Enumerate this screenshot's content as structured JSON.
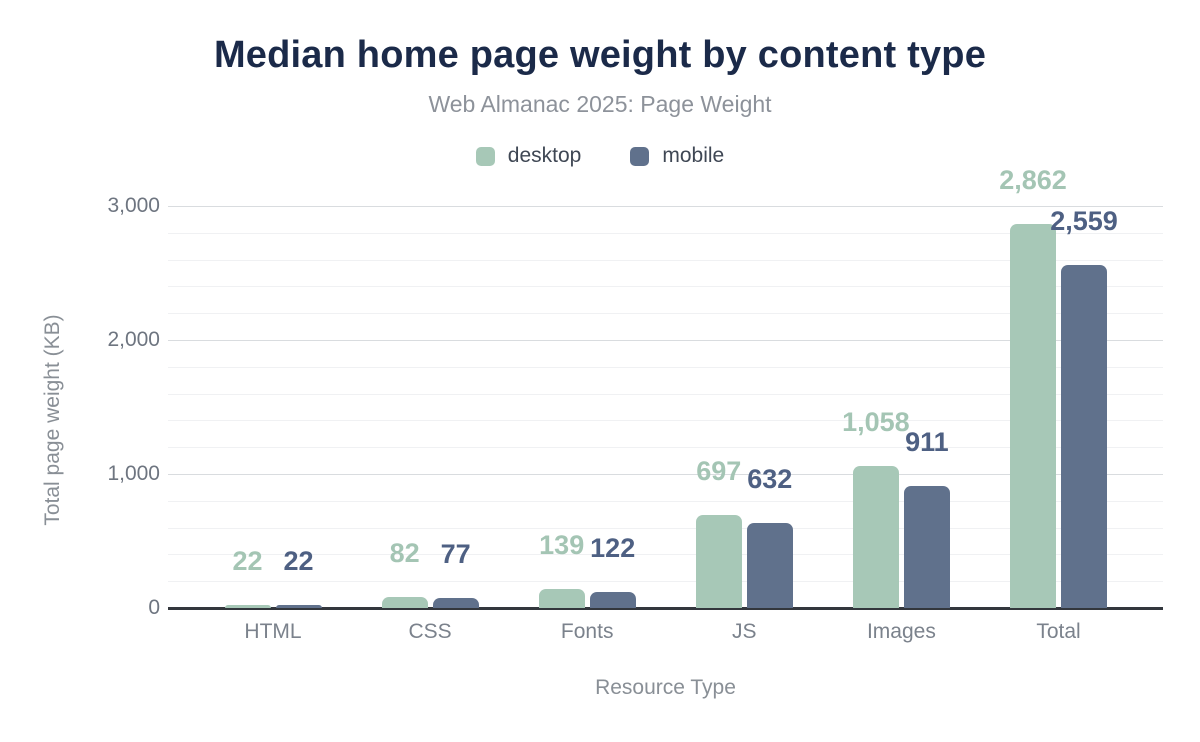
{
  "header": {
    "title": "Median home page weight by content type",
    "subtitle": "Web Almanac 2025: Page Weight"
  },
  "colors": {
    "title": "#1b2a49",
    "subtitle": "#8d929a",
    "tick_text": "#6e7580",
    "category_text": "#7b828c",
    "axis_title_text": "#898f96",
    "legend_text": "#3f4754",
    "axis_line": "#33373d",
    "grid_major": "#d9dcdf",
    "grid_minor": "#f0f1f3",
    "desktop": "#a7c8b7",
    "mobile": "#60718c",
    "desktop_label": "#a4c5b4",
    "mobile_label": "#4e6083"
  },
  "chart_data": {
    "type": "bar",
    "title": "Median home page weight by content type",
    "subtitle": "Web Almanac 2025: Page Weight",
    "categories": [
      "HTML",
      "CSS",
      "Fonts",
      "JS",
      "Images",
      "Total"
    ],
    "series": [
      {
        "name": "desktop",
        "color": "#a7c8b7",
        "label_color": "#a4c5b4",
        "values": [
          22,
          82,
          139,
          697,
          1058,
          2862
        ]
      },
      {
        "name": "mobile",
        "color": "#60718c",
        "label_color": "#4e6083",
        "values": [
          22,
          77,
          122,
          632,
          911,
          2559
        ]
      }
    ],
    "value_labels": {
      "desktop": [
        "22",
        "82",
        "139",
        "697",
        "1,058",
        "2,862"
      ],
      "mobile": [
        "22",
        "77",
        "122",
        "632",
        "911",
        "2,559"
      ]
    },
    "xlabel": "Resource Type",
    "ylabel": "Total page weight (KB)",
    "ylim": [
      0,
      3000
    ],
    "yticks": [
      0,
      1000,
      2000,
      3000
    ],
    "ytick_labels": [
      "0",
      "1,000",
      "2,000",
      "3,000"
    ],
    "minor_grid_step": 200,
    "grid": true,
    "legend_position": "top"
  }
}
